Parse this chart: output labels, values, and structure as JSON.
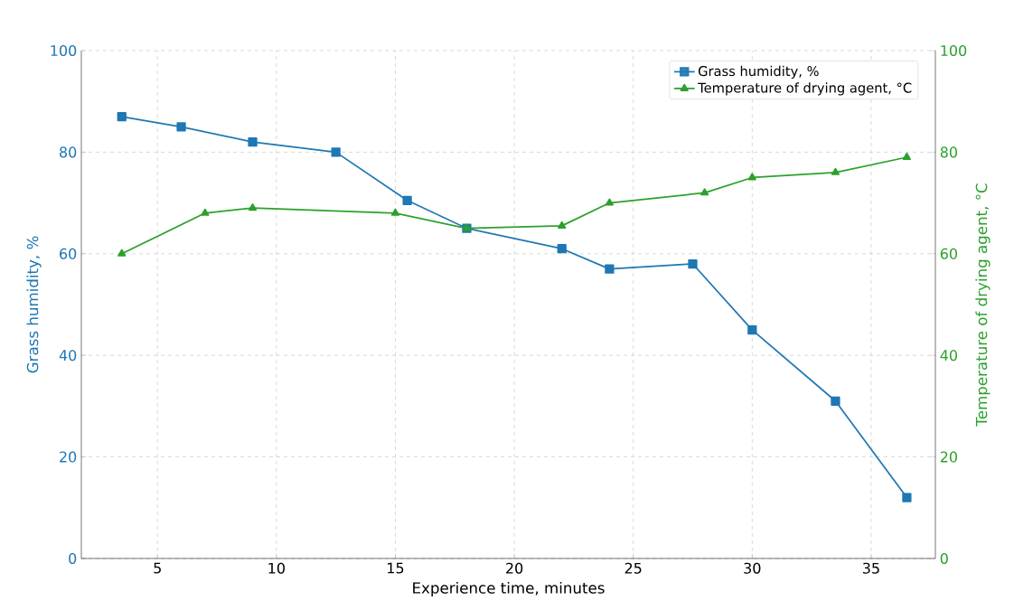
{
  "chart_data": {
    "type": "line",
    "xlabel": "Experience time, minutes",
    "ylabel": "Grass humidity, %",
    "y2label": "Temperature of drying agent, °C",
    "xlim": [
      1.8,
      37.7
    ],
    "xticks": [
      5,
      10,
      15,
      20,
      25,
      30,
      35
    ],
    "ylim": [
      0,
      100
    ],
    "yticks": [
      0,
      20,
      40,
      60,
      80,
      100
    ],
    "y2lim": [
      0,
      100
    ],
    "y2ticks": [
      0,
      20,
      40,
      60,
      80,
      100
    ],
    "grid": true,
    "legend": "top right",
    "line_style": "solid",
    "series": [
      {
        "name": "Grass humidity, %",
        "color": "#1f77b4",
        "marker": "square",
        "x": [
          3.5,
          6,
          9,
          12.5,
          15.5,
          18,
          22,
          24,
          27.5,
          30,
          33.5,
          36.5
        ],
        "values": [
          87,
          85,
          82,
          80,
          70.5,
          65,
          61,
          57,
          58,
          45,
          31,
          12
        ]
      },
      {
        "name": "Temperature of drying agent, °C",
        "color": "#2ca02c",
        "marker": "triangle",
        "axis": "y2",
        "x": [
          3.5,
          7,
          9,
          15,
          18,
          22,
          24,
          28,
          30,
          33.5,
          36.5
        ],
        "values": [
          60,
          68,
          69,
          68,
          65,
          65.5,
          70,
          72,
          75,
          76,
          79
        ]
      }
    ]
  }
}
